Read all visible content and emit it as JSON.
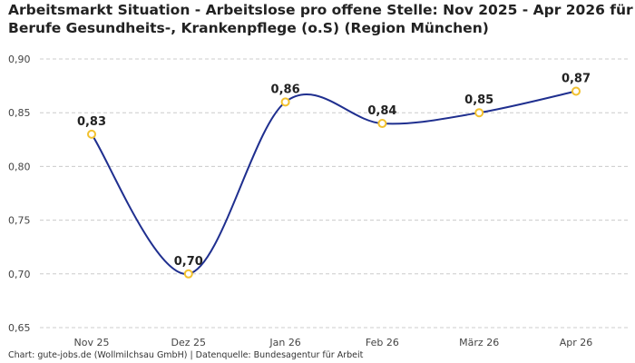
{
  "title_lines": [
    "Arbeitsmarkt Situation - Arbeitslose pro offene Stelle: Nov 2025 - Apr 2026 für",
    "Berufe Gesundheits-, Krankenpflege (o.S) (Region München)"
  ],
  "caption": "Chart: gute-jobs.de (Wollmilchsau GmbH) | Datenquelle: Bundesagentur für Arbeit",
  "chart_data": {
    "type": "line",
    "title": "Arbeitsmarkt Situation - Arbeitslose pro offene Stelle: Nov 2025 - Apr 2026 für Berufe Gesundheits-, Krankenpflege (o.S) (Region München)",
    "categories": [
      "Nov 25",
      "Dez 25",
      "Jan 26",
      "Feb 26",
      "März 26",
      "Apr 26"
    ],
    "values": [
      0.83,
      0.7,
      0.86,
      0.84,
      0.85,
      0.87
    ],
    "data_labels": [
      "0,83",
      "0,70",
      "0,86",
      "0,84",
      "0,85",
      "0,87"
    ],
    "y_ticks": [
      0.65,
      0.7,
      0.75,
      0.8,
      0.85,
      0.9
    ],
    "y_tick_labels": [
      "0,65",
      "0,70",
      "0,75",
      "0,80",
      "0,85",
      "0,90"
    ],
    "ylim": [
      0.65,
      0.9
    ],
    "xlabel": "",
    "ylabel": "",
    "grid": true,
    "line_color": "#1f2f8f",
    "marker_color": "#f2c12e",
    "grid_color": "#cccccc"
  }
}
